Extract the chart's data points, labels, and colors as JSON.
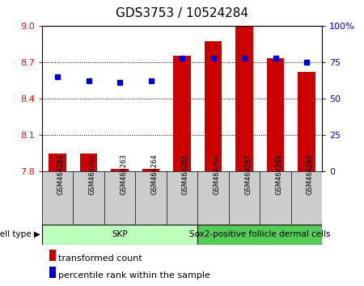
{
  "title": "GDS3753 / 10524284",
  "samples": [
    "GSM464261",
    "GSM464262",
    "GSM464263",
    "GSM464264",
    "GSM464265",
    "GSM464266",
    "GSM464267",
    "GSM464268",
    "GSM464269"
  ],
  "transformed_counts": [
    7.95,
    7.95,
    7.82,
    7.82,
    8.75,
    8.87,
    9.0,
    8.73,
    8.62
  ],
  "percentile_ranks": [
    65,
    62,
    61,
    62,
    78,
    78,
    78,
    78,
    75
  ],
  "cell_types": [
    {
      "label": "SKP",
      "start": 0,
      "end": 5,
      "color": "#bbffbb"
    },
    {
      "label": "Sox2-positive follicle dermal cells",
      "start": 5,
      "end": 9,
      "color": "#55cc55"
    }
  ],
  "ylim_left": [
    7.8,
    9.0
  ],
  "ylim_right": [
    0,
    100
  ],
  "yticks_left": [
    7.8,
    8.1,
    8.4,
    8.7,
    9.0
  ],
  "yticks_right": [
    0,
    25,
    50,
    75,
    100
  ],
  "bar_color": "#cc0000",
  "dot_color": "#0000cc",
  "bar_width": 0.55,
  "grid_lines": [
    8.1,
    8.4,
    8.7
  ],
  "legend_bar_label": "transformed count",
  "legend_dot_label": "percentile rank within the sample",
  "title_fontsize": 11,
  "tick_fontsize": 8,
  "sample_fontsize": 6,
  "celltype_fontsize": 7.5,
  "legend_fontsize": 8
}
